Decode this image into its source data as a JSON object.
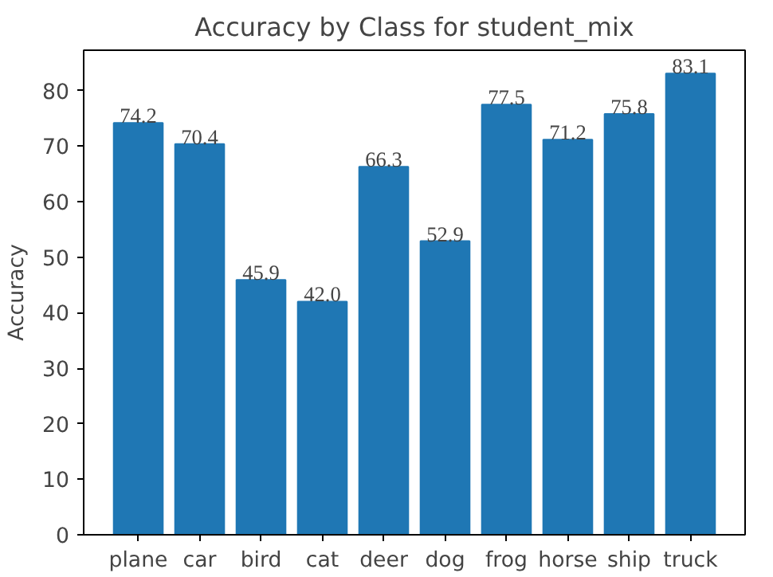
{
  "chart_data": {
    "type": "bar",
    "title": "Accuracy by Class for student_mix",
    "ylabel": "Accuracy",
    "categories": [
      "plane",
      "car",
      "bird",
      "cat",
      "deer",
      "dog",
      "frog",
      "horse",
      "ship",
      "truck"
    ],
    "values": [
      74.2,
      70.4,
      45.9,
      42.0,
      66.3,
      52.9,
      77.5,
      71.2,
      75.8,
      83.1
    ],
    "value_labels": [
      "74.2",
      "70.4",
      "45.9",
      "42.0",
      "66.3",
      "52.9",
      "77.5",
      "71.2",
      "75.8",
      "83.1"
    ],
    "color": "#1f77b4",
    "ylim": [
      0,
      87.3
    ],
    "yticks": [
      0,
      10,
      20,
      30,
      40,
      50,
      60,
      70,
      80
    ],
    "grid": false
  }
}
